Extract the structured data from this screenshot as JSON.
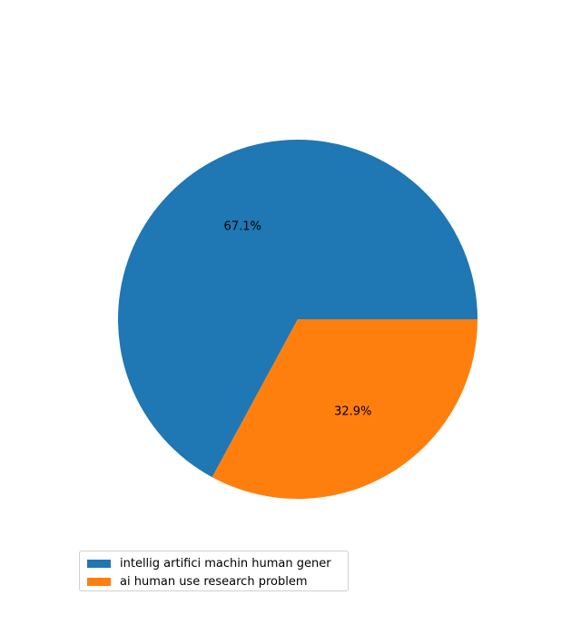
{
  "chart_data": {
    "type": "pie",
    "title": "",
    "slices": [
      {
        "label": "intellig artifici machin human gener",
        "value": 67.1,
        "pct_label": "67.1%",
        "color": "#1f77b4"
      },
      {
        "label": "ai human use research problem",
        "value": 32.9,
        "pct_label": "32.9%",
        "color": "#ff7f0e"
      }
    ],
    "legend_position": "lower-left",
    "start_angle_deg": 0,
    "direction": "counterclockwise"
  }
}
